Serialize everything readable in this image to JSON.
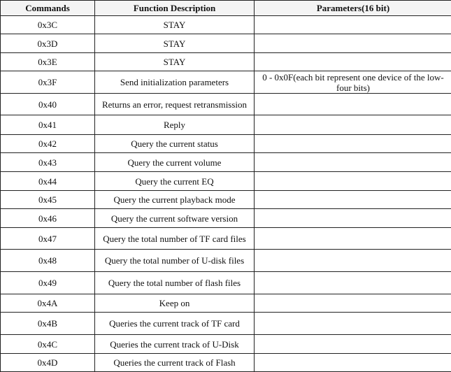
{
  "headers": [
    "Commands",
    "Function Description",
    "Parameters(16 bit)"
  ],
  "rows": [
    {
      "cmd": "0x3C",
      "desc": "STAY",
      "param": ""
    },
    {
      "cmd": "0x3D",
      "desc": "STAY",
      "param": ""
    },
    {
      "cmd": "0x3E",
      "desc": "STAY",
      "param": ""
    },
    {
      "cmd": "0x3F",
      "desc": "Send initialization parameters",
      "param": "0 - 0x0F(each bit represent one device of the low-four bits)"
    },
    {
      "cmd": "0x40",
      "desc": "Returns an error, request retransmission",
      "param": ""
    },
    {
      "cmd": "0x41",
      "desc": "Reply",
      "param": ""
    },
    {
      "cmd": "0x42",
      "desc": "Query the current status",
      "param": ""
    },
    {
      "cmd": "0x43",
      "desc": "Query the current volume",
      "param": ""
    },
    {
      "cmd": "0x44",
      "desc": "Query the current EQ",
      "param": ""
    },
    {
      "cmd": "0x45",
      "desc": "Query the current playback mode",
      "param": ""
    },
    {
      "cmd": "0x46",
      "desc": "Query the current software version",
      "param": ""
    },
    {
      "cmd": "0x47",
      "desc": "Query the total number of TF card files",
      "param": ""
    },
    {
      "cmd": "0x48",
      "desc": "Query the total number of U-disk files",
      "param": ""
    },
    {
      "cmd": "0x49",
      "desc": "Query the total number of flash files",
      "param": ""
    },
    {
      "cmd": "0x4A",
      "desc": "Keep on",
      "param": ""
    },
    {
      "cmd": "0x4B",
      "desc": "Queries the current track of TF card",
      "param": ""
    },
    {
      "cmd": "0x4C",
      "desc": "Queries the current track of U-Disk",
      "param": ""
    },
    {
      "cmd": "0x4D",
      "desc": "Queries the current track of Flash",
      "param": ""
    }
  ]
}
